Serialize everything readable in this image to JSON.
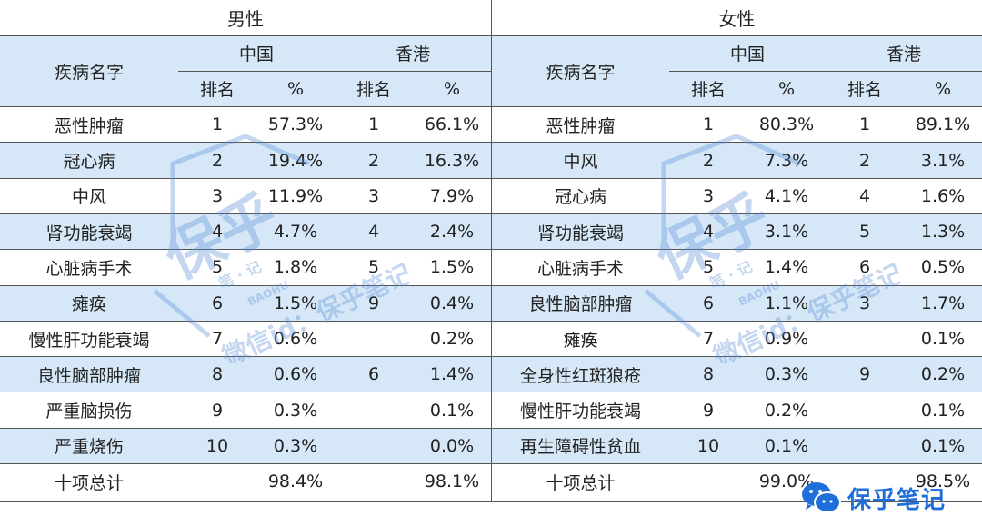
{
  "male": {
    "title": "男性",
    "col_disease": "疾病名字",
    "region_cn": "中国",
    "region_hk": "香港",
    "rank_label": "排名",
    "pct_label": "%",
    "rows": [
      {
        "name": "恶性肿瘤",
        "cn_rank": "1",
        "cn_pct": "57.3%",
        "hk_rank": "1",
        "hk_pct": "66.1%"
      },
      {
        "name": "冠心病",
        "cn_rank": "2",
        "cn_pct": "19.4%",
        "hk_rank": "2",
        "hk_pct": "16.3%"
      },
      {
        "name": "中风",
        "cn_rank": "3",
        "cn_pct": "11.9%",
        "hk_rank": "3",
        "hk_pct": "7.9%"
      },
      {
        "name": "肾功能衰竭",
        "cn_rank": "4",
        "cn_pct": "4.7%",
        "hk_rank": "4",
        "hk_pct": "2.4%"
      },
      {
        "name": "心脏病手术",
        "cn_rank": "5",
        "cn_pct": "1.8%",
        "hk_rank": "5",
        "hk_pct": "1.5%"
      },
      {
        "name": "瘫痪",
        "cn_rank": "6",
        "cn_pct": "1.5%",
        "hk_rank": "9",
        "hk_pct": "0.4%"
      },
      {
        "name": "慢性肝功能衰竭",
        "cn_rank": "7",
        "cn_pct": "0.6%",
        "hk_rank": "",
        "hk_pct": "0.2%"
      },
      {
        "name": "良性脑部肿瘤",
        "cn_rank": "8",
        "cn_pct": "0.6%",
        "hk_rank": "6",
        "hk_pct": "1.4%"
      },
      {
        "name": "严重脑损伤",
        "cn_rank": "9",
        "cn_pct": "0.3%",
        "hk_rank": "",
        "hk_pct": "0.1%"
      },
      {
        "name": "严重烧伤",
        "cn_rank": "10",
        "cn_pct": "0.3%",
        "hk_rank": "",
        "hk_pct": "0.0%"
      }
    ],
    "total": {
      "name": "十项总计",
      "cn_pct": "98.4%",
      "hk_pct": "98.1%"
    }
  },
  "female": {
    "title": "女性",
    "col_disease": "疾病名字",
    "region_cn": "中国",
    "region_hk": "香港",
    "rank_label": "排名",
    "pct_label": "%",
    "rows": [
      {
        "name": "恶性肿瘤",
        "cn_rank": "1",
        "cn_pct": "80.3%",
        "hk_rank": "1",
        "hk_pct": "89.1%"
      },
      {
        "name": "中风",
        "cn_rank": "2",
        "cn_pct": "7.3%",
        "hk_rank": "2",
        "hk_pct": "3.1%"
      },
      {
        "name": "冠心病",
        "cn_rank": "3",
        "cn_pct": "4.1%",
        "hk_rank": "4",
        "hk_pct": "1.6%"
      },
      {
        "name": "肾功能衰竭",
        "cn_rank": "4",
        "cn_pct": "3.1%",
        "hk_rank": "5",
        "hk_pct": "1.3%"
      },
      {
        "name": "心脏病手术",
        "cn_rank": "5",
        "cn_pct": "1.4%",
        "hk_rank": "6",
        "hk_pct": "0.5%"
      },
      {
        "name": "良性脑部肿瘤",
        "cn_rank": "6",
        "cn_pct": "1.1%",
        "hk_rank": "3",
        "hk_pct": "1.7%"
      },
      {
        "name": "瘫痪",
        "cn_rank": "7",
        "cn_pct": "0.9%",
        "hk_rank": "",
        "hk_pct": "0.1%"
      },
      {
        "name": "全身性红斑狼疮",
        "cn_rank": "8",
        "cn_pct": "0.3%",
        "hk_rank": "9",
        "hk_pct": "0.2%"
      },
      {
        "name": "慢性肝功能衰竭",
        "cn_rank": "9",
        "cn_pct": "0.2%",
        "hk_rank": "",
        "hk_pct": "0.1%"
      },
      {
        "name": "再生障碍性贫血",
        "cn_rank": "10",
        "cn_pct": "0.1%",
        "hk_rank": "",
        "hk_pct": "0.1%"
      }
    ],
    "total": {
      "name": "十项总计",
      "cn_pct": "99.0%",
      "hk_pct": "98.5%"
    }
  },
  "watermark": {
    "main": "保乎",
    "sub": "笔 · 记",
    "latin": "BAOHU",
    "wechat": "微信id：保乎笔记"
  },
  "logo": {
    "text": "保乎笔记",
    "icon": "wechat-icon"
  },
  "colors": {
    "stripe": "#d6e7f7",
    "border": "#555555",
    "brand": "#1e6fd9"
  }
}
